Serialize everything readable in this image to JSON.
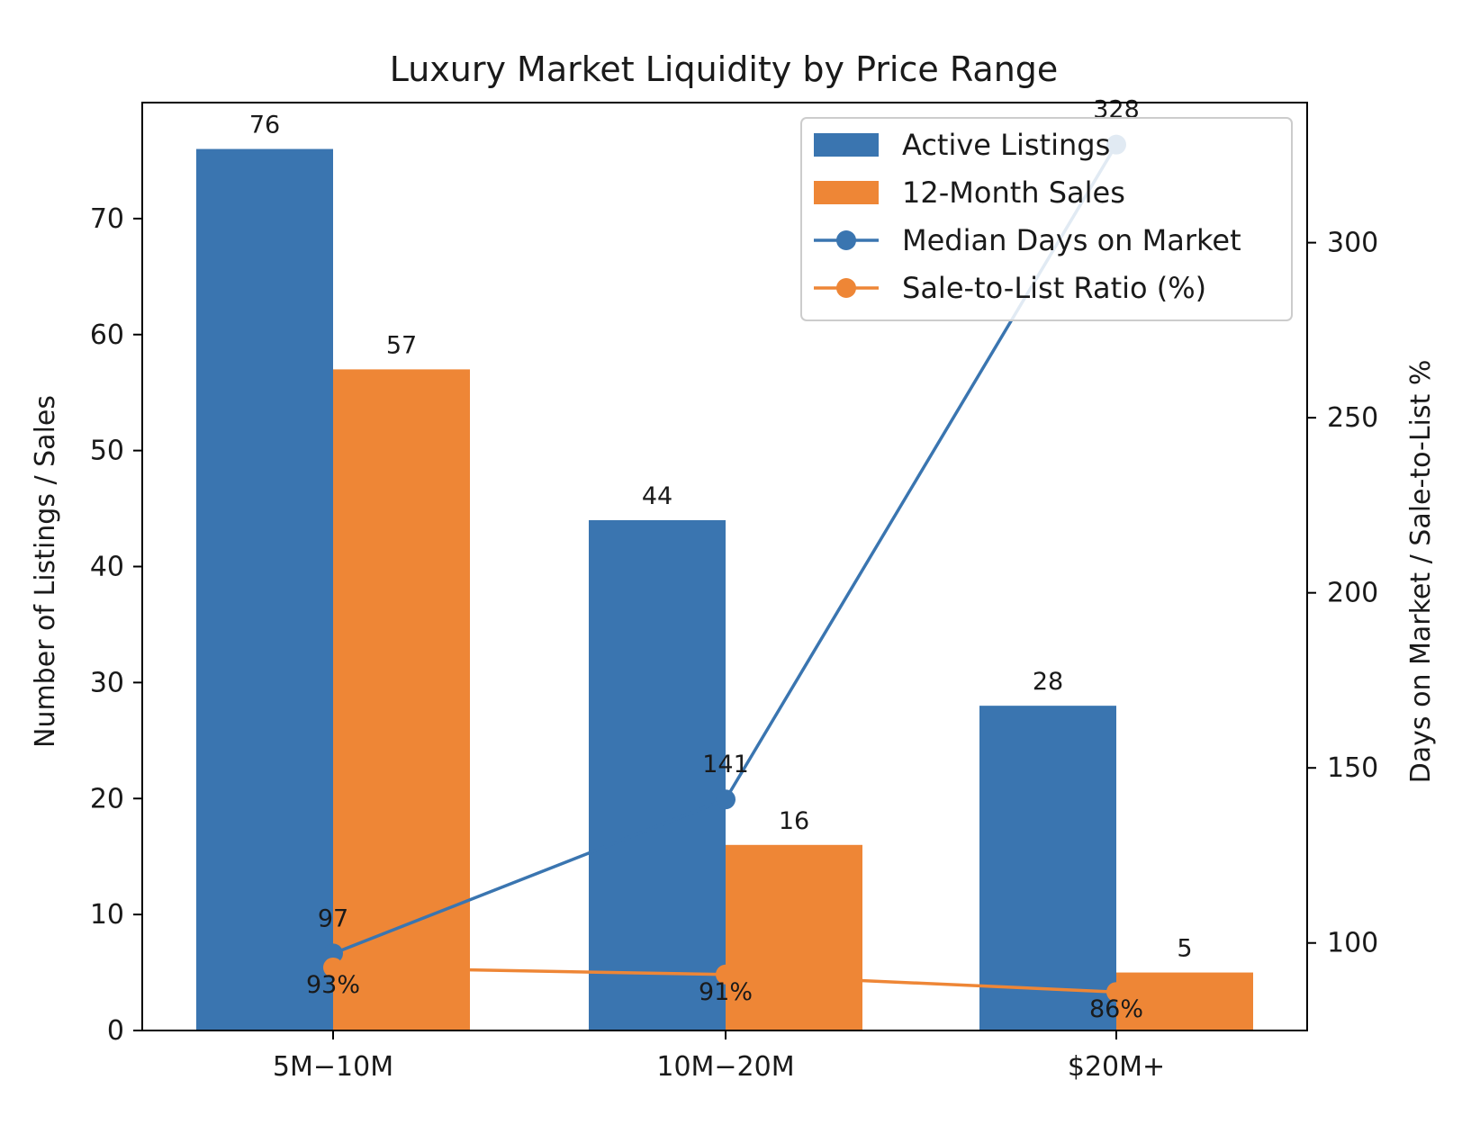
{
  "chart_data": {
    "type": "bar",
    "title": "Luxury Market Liquidity by Price Range",
    "categories": [
      "5M−10M",
      "10M−20M",
      "$20M+"
    ],
    "xlabel": "",
    "ylabel": "Number of Listings / Sales",
    "y2label": "Days on Market / Sale-to-List %",
    "ylim": [
      0,
      80
    ],
    "yticks": [
      0,
      10,
      20,
      30,
      40,
      50,
      60,
      70
    ],
    "y2lim": [
      75,
      340
    ],
    "y2ticks": [
      100,
      150,
      200,
      250,
      300
    ],
    "grid": false,
    "legend_position": "top-right",
    "series": [
      {
        "name": "Active Listings",
        "kind": "bar",
        "axis": "left",
        "color": "#3a75b0",
        "values": [
          76,
          44,
          28
        ],
        "labels": [
          "76",
          "44",
          "28"
        ]
      },
      {
        "name": "12-Month Sales",
        "kind": "bar",
        "axis": "left",
        "color": "#ee8636",
        "values": [
          57,
          16,
          5
        ],
        "labels": [
          "57",
          "16",
          "5"
        ]
      },
      {
        "name": "Median Days on Market",
        "kind": "line",
        "axis": "right",
        "color": "#3a75b0",
        "values": [
          97,
          141,
          328
        ],
        "labels": [
          "97",
          "141",
          "328"
        ]
      },
      {
        "name": "Sale-to-List Ratio (%)",
        "kind": "line",
        "axis": "right",
        "color": "#ee8636",
        "values": [
          93,
          91,
          86
        ],
        "labels": [
          "93%",
          "91%",
          "86%"
        ]
      }
    ]
  }
}
